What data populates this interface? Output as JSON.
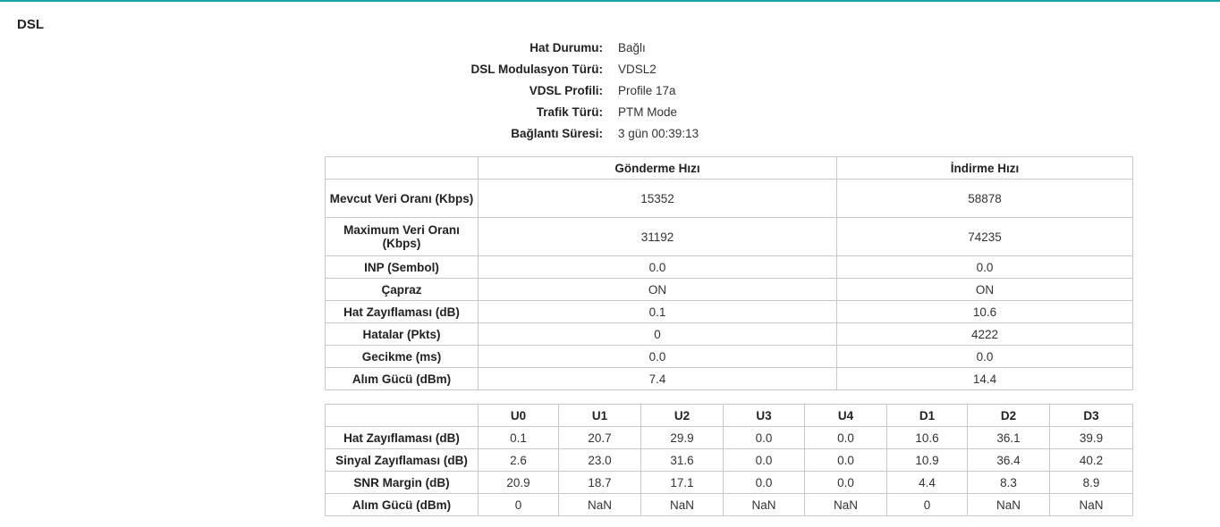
{
  "section_title": "DSL",
  "status": [
    {
      "label": "Hat Durumu:",
      "value": "Bağlı"
    },
    {
      "label": "DSL Modulasyon Türü:",
      "value": "VDSL2"
    },
    {
      "label": "VDSL Profili:",
      "value": "Profile 17a"
    },
    {
      "label": "Trafik Türü:",
      "value": "PTM Mode"
    },
    {
      "label": "Bağlantı Süresi:",
      "value": "3 gün 00:39:13"
    }
  ],
  "rate_table": {
    "headers": [
      "",
      "Gönderme Hızı",
      "İndirme Hızı"
    ],
    "rows": [
      {
        "label": "Mevcut Veri Oranı (Kbps)",
        "up": "15352",
        "down": "58878"
      },
      {
        "label": "Maximum Veri Oranı (Kbps)",
        "up": "31192",
        "down": "74235"
      },
      {
        "label": "INP (Sembol)",
        "up": "0.0",
        "down": "0.0"
      },
      {
        "label": "Çapraz",
        "up": "ON",
        "down": "ON"
      },
      {
        "label": "Hat Zayıflaması (dB)",
        "up": "0.1",
        "down": "10.6"
      },
      {
        "label": "Hatalar (Pkts)",
        "up": "0",
        "down": "4222"
      },
      {
        "label": "Gecikme (ms)",
        "up": "0.0",
        "down": "0.0"
      },
      {
        "label": "Alım Gücü (dBm)",
        "up": "7.4",
        "down": "14.4"
      }
    ]
  },
  "band_table": {
    "headers": [
      "",
      "U0",
      "U1",
      "U2",
      "U3",
      "U4",
      "D1",
      "D2",
      "D3"
    ],
    "rows": [
      {
        "label": "Hat Zayıflaması (dB)",
        "values": [
          "0.1",
          "20.7",
          "29.9",
          "0.0",
          "0.0",
          "10.6",
          "36.1",
          "39.9"
        ]
      },
      {
        "label": "Sinyal Zayıflaması (dB)",
        "values": [
          "2.6",
          "23.0",
          "31.6",
          "0.0",
          "0.0",
          "10.9",
          "36.4",
          "40.2"
        ]
      },
      {
        "label": "SNR Margin (dB)",
        "values": [
          "20.9",
          "18.7",
          "17.1",
          "0.0",
          "0.0",
          "4.4",
          "8.3",
          "8.9"
        ]
      },
      {
        "label": "Alım Gücü (dBm)",
        "values": [
          "0",
          "NaN",
          "NaN",
          "NaN",
          "NaN",
          "0",
          "NaN",
          "NaN"
        ]
      }
    ]
  },
  "colors": {
    "accent_rule": "#1aa3a3",
    "border": "#c8c8c8"
  }
}
